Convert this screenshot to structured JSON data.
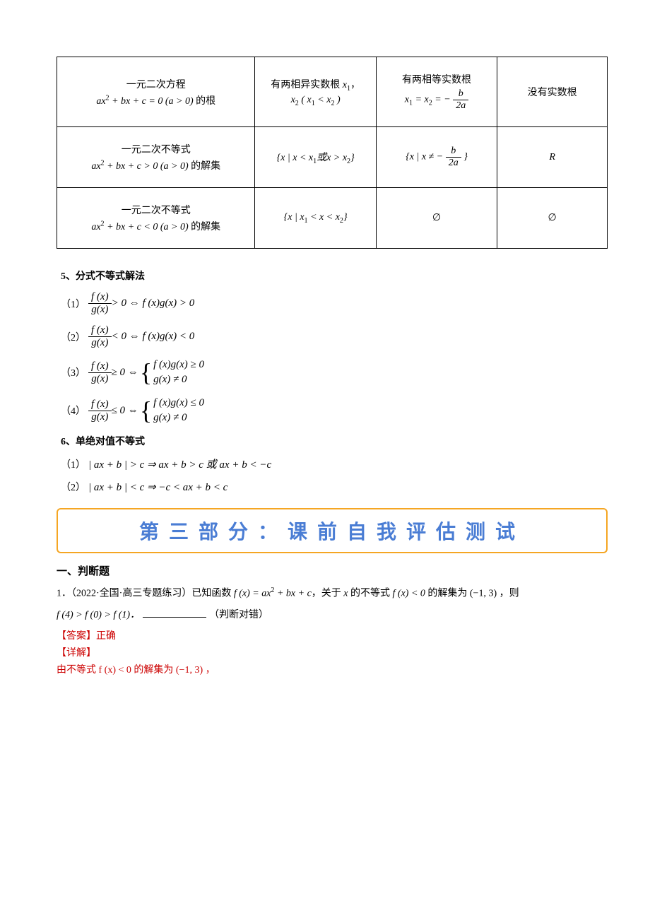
{
  "table": {
    "row1": {
      "c1a": "一元二次方程",
      "c1b_pre": "ax",
      "c1b_sup": "2",
      "c1b_mid": " + bx + c = 0 (a > 0) ",
      "c1b_suffix": "的根",
      "c2a": "有两相异实数根 ",
      "c2a_v": "x",
      "c2a_sub": "1",
      "c2a_post": "，",
      "c2b_v": "x",
      "c2b_sub": "2",
      "c2b_par": " ( x",
      "c2b_s1": "1",
      "c2b_lt": " < x",
      "c2b_s2": "2",
      "c2b_close": " )",
      "c3a": "有两相等实数根",
      "c3b_l": "x",
      "c3b_ls": "1",
      "c3b_eq": " = x",
      "c3b_rs": "2",
      "c3b_eq2": " = −",
      "c3b_fnum": "b",
      "c3b_fden": "2a",
      "c4": "没有实数根"
    },
    "row2": {
      "c1a": "一元二次不等式",
      "c1b_pre": "ax",
      "c1b_sup": "2",
      "c1b_mid": " + bx + c > 0 (a > 0) ",
      "c1b_suffix": "的解集",
      "c2": "{x | x < x",
      "c2_s1": "1",
      "c2_mid": "或x > x",
      "c2_s2": "2",
      "c2_end": "}",
      "c3_pre": "{x | x ≠ −",
      "c3_fnum": "b",
      "c3_fden": "2a",
      "c3_end": "}",
      "c4": "R"
    },
    "row3": {
      "c1a": "一元二次不等式",
      "c1b_pre": "ax",
      "c1b_sup": "2",
      "c1b_mid": " + bx + c < 0 (a > 0) ",
      "c1b_suffix": "的解集",
      "c2": "{x | x",
      "c2_s1": "1",
      "c2_mid": " < x < x",
      "c2_s2": "2",
      "c2_end": "}",
      "c3": "∅",
      "c4": "∅"
    }
  },
  "sec5": {
    "title": "5、分式不等式解法",
    "f_num": "f (x)",
    "f_den": "g(x)",
    "l1_label": "（1）",
    "l1_rhs": " > 0 ⇔ f (x)g(x) > 0",
    "l2_label": "（2）",
    "l2_rhs": " < 0 ⇔ f (x)g(x) < 0",
    "l3_label": "（3）",
    "l3_lhs_op": " ≥ 0 ⇔ ",
    "l3_c1": "f (x)g(x) ≥ 0",
    "l3_c2": "g(x) ≠ 0",
    "l4_label": "（4）",
    "l4_lhs_op": " ≤ 0 ⇔ ",
    "l4_c1": "f (x)g(x) ≤ 0",
    "l4_c2": "g(x) ≠ 0"
  },
  "sec6": {
    "title": "6、单绝对值不等式",
    "l1_label": "（1）",
    "l1": "| ax + b | > c ⇒ ax + b > c 或 ax + b < −c",
    "l2_label": "（2）",
    "l2": "| ax + b | < c ⇒ −c < ax + b < c"
  },
  "banner": "第三部分：课前自我评估测试",
  "part3": {
    "sub": "一、判断题",
    "q1_num": "1．",
    "q1_src": "（2022·全国·高三专题练习）已知函数 ",
    "q1_f": "f (x) = ax",
    "q1_sup": "2",
    "q1_f2": " + bx + c",
    "q1_mid": "，关于 ",
    "q1_x": "x",
    "q1_mid2": " 的不等式 ",
    "q1_ineq": "f (x) < 0",
    "q1_tail": " 的解集为 (−1, 3) ，则",
    "q1_line2": "f (4) > f (0) > f (1)．",
    "q1_judge": "（判断对错）",
    "ans_label": "【答案】",
    "ans_text": "正确",
    "det_label": "【详解】",
    "det_line": "由不等式 f (x) < 0 的解集为 (−1, 3) ，"
  },
  "colors": {
    "border": "#f5a623",
    "banner_text": "#4a7dd4",
    "red": "#cc0000",
    "background": "#ffffff",
    "text": "#000000"
  },
  "fonts": {
    "body": "SimSun",
    "banner": "Microsoft YaHei",
    "math": "Times New Roman",
    "body_size": 14,
    "banner_size": 28
  }
}
